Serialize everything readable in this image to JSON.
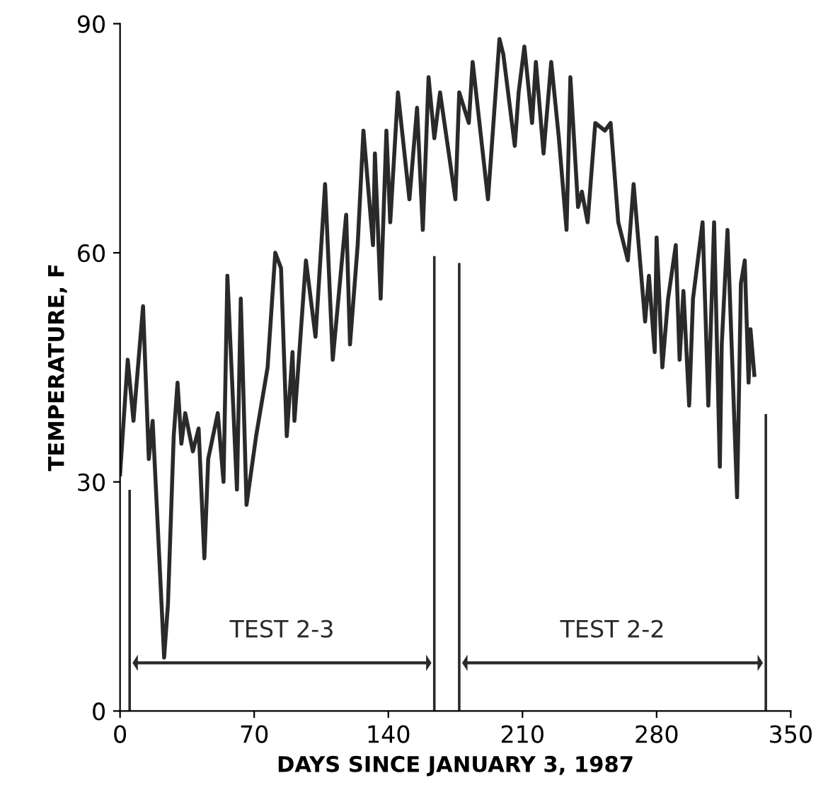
{
  "chart_data": {
    "type": "line",
    "xlabel": "DAYS SINCE JANUARY 3, 1987",
    "ylabel": "TEMPERATURE, F",
    "x": [
      0,
      4,
      7,
      12,
      15,
      17,
      23,
      25,
      28,
      30,
      32,
      34,
      38,
      41,
      44,
      46,
      51,
      54,
      56,
      61,
      63,
      66,
      71,
      77,
      81,
      84,
      87,
      90,
      91,
      97,
      102,
      107,
      111,
      118,
      120,
      124,
      127,
      132,
      133,
      136,
      139,
      141,
      145,
      151,
      155,
      158,
      161,
      164,
      167,
      171,
      175,
      177,
      182,
      184,
      192,
      198,
      200,
      206,
      208,
      211,
      215,
      217,
      221,
      225,
      229,
      233,
      235,
      239,
      241,
      244,
      248,
      253,
      256,
      260,
      265,
      268,
      273,
      274,
      276,
      279,
      280,
      283,
      286,
      290,
      292,
      294,
      297,
      299,
      304,
      307,
      310,
      313,
      314,
      317,
      322,
      324,
      326,
      328,
      329,
      331
    ],
    "series": [
      {
        "color": "#2a2a2a",
        "values": [
          31,
          46,
          38,
          53,
          33,
          38,
          7,
          14,
          36,
          43,
          35,
          39,
          34,
          37,
          20,
          33,
          39,
          30,
          57,
          29,
          54,
          27,
          36,
          45,
          60,
          58,
          36,
          47,
          38,
          59,
          49,
          69,
          46,
          65,
          48,
          61,
          76,
          61,
          73,
          54,
          76,
          64,
          81,
          67,
          79,
          63,
          83,
          75,
          81,
          74,
          67,
          81,
          77,
          85,
          67,
          88,
          86,
          74,
          81,
          87,
          77,
          85,
          73,
          85,
          75,
          63,
          83,
          66,
          68,
          64,
          77,
          76,
          77,
          64,
          59,
          69,
          54,
          51,
          57,
          47,
          62,
          45,
          54,
          61,
          46,
          55,
          40,
          54,
          64,
          40,
          64,
          32,
          48,
          63,
          28,
          56,
          59,
          43,
          50,
          44
        ]
      }
    ],
    "xlim": [
      0,
      350
    ],
    "ylim": [
      0,
      90
    ],
    "xticks": [
      0,
      70,
      140,
      210,
      280,
      350
    ],
    "yticks": [
      0,
      30,
      60,
      90
    ],
    "grid": false,
    "legend": false,
    "line_style": "solid",
    "marker": "none",
    "ref_lines": [
      {
        "axis": "x",
        "value": 5,
        "color": "#2a2a2a"
      },
      {
        "axis": "x",
        "value": 164,
        "color": "#2a2a2a"
      },
      {
        "axis": "x",
        "value": 177,
        "color": "#2a2a2a"
      },
      {
        "axis": "x",
        "value": 337,
        "color": "#2a2a2a"
      }
    ],
    "annotations": [
      "TEST 2-3",
      "TEST 2-2"
    ]
  }
}
